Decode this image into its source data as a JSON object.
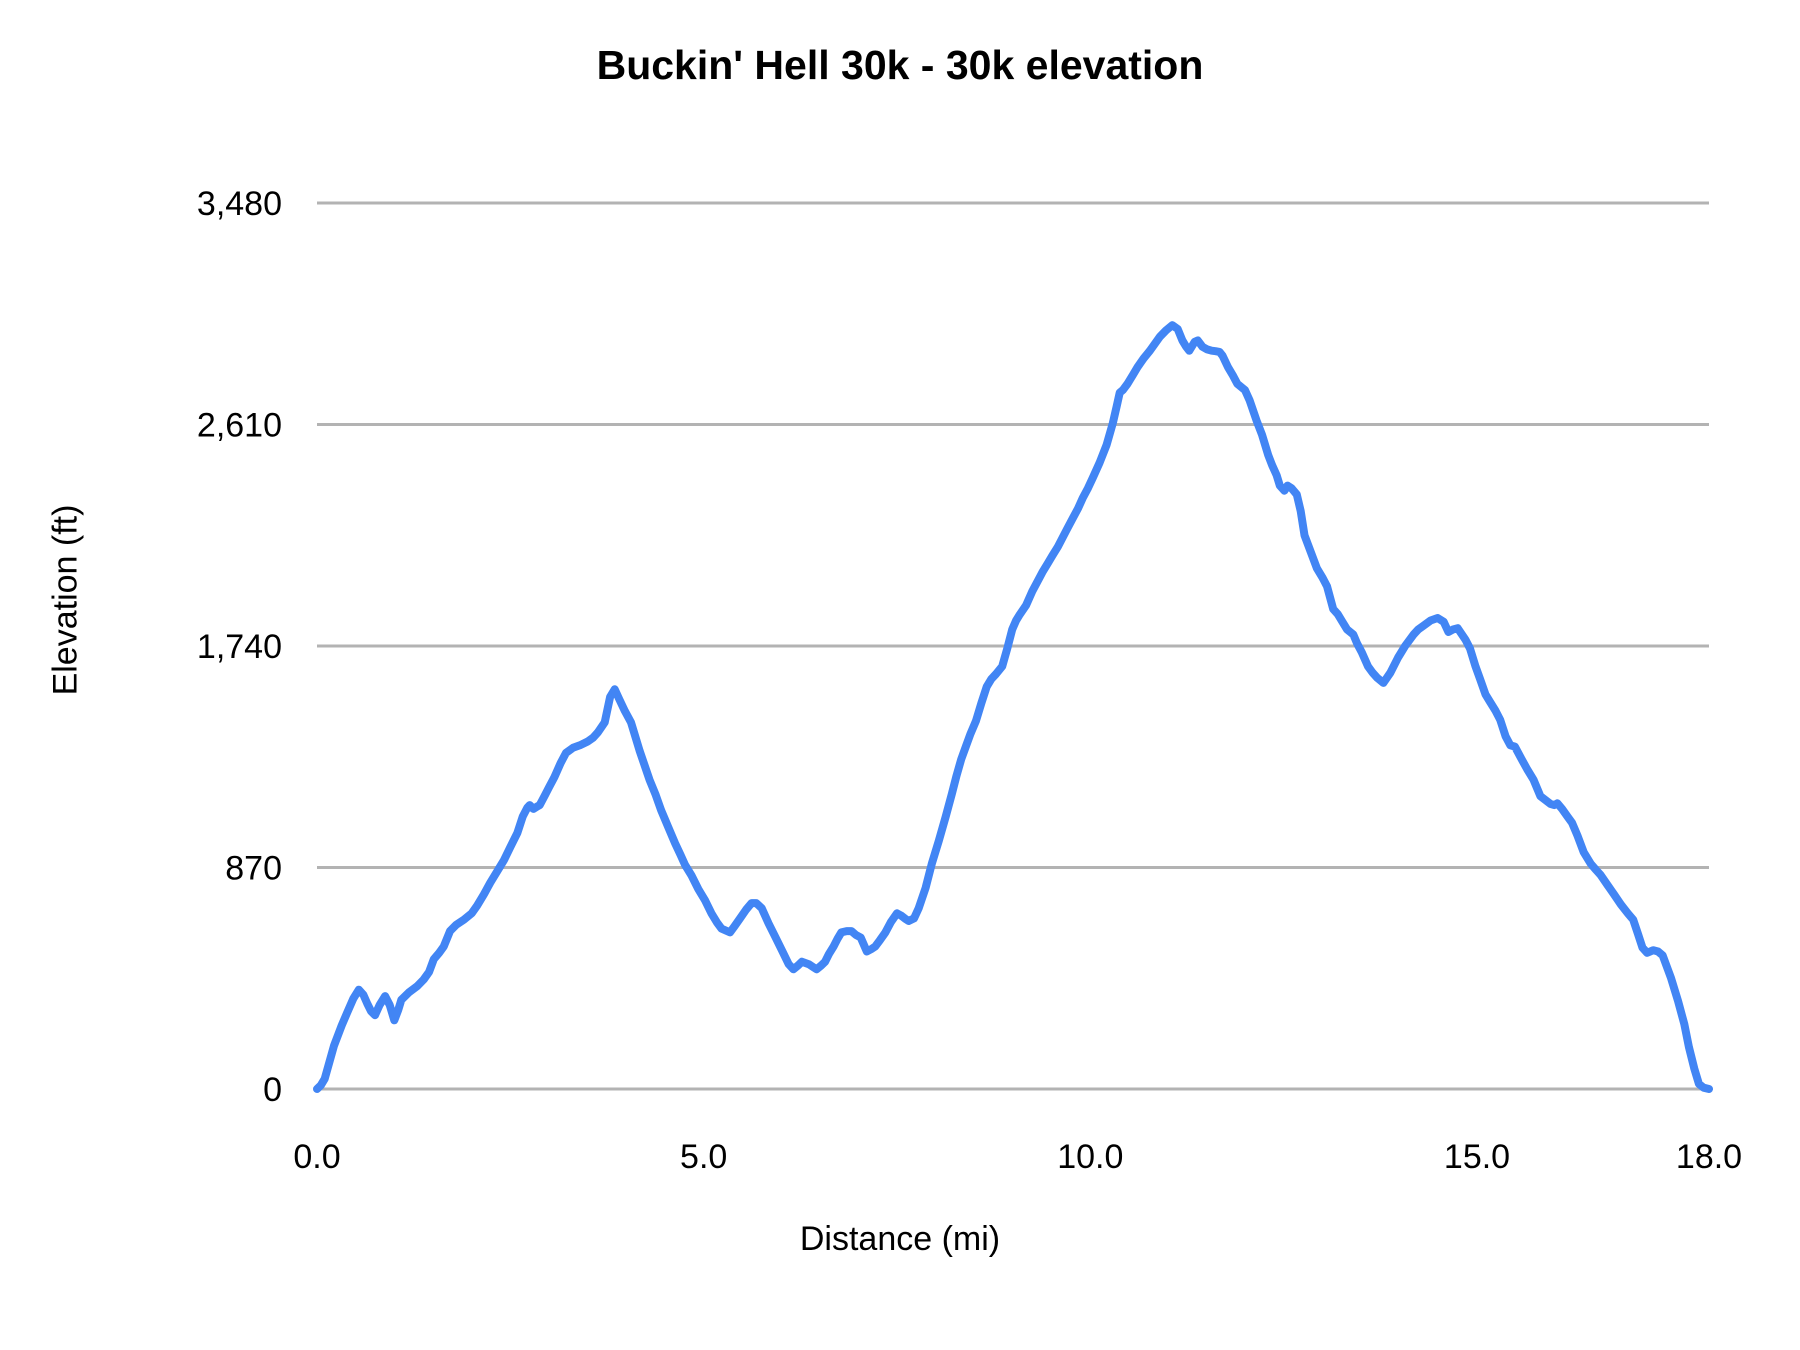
{
  "chart_data": {
    "type": "line",
    "title": "Buckin' Hell 30k - 30k elevation",
    "xlabel": "Distance (mi)",
    "ylabel": "Elevation (ft)",
    "xlim": [
      0,
      18
    ],
    "ylim": [
      0,
      3480
    ],
    "grid": "horizontal-only",
    "legend": "none",
    "line_color": "#4285f4",
    "line_width": 8,
    "grid_color": "#b3b3b3",
    "text_color": "#000000",
    "background_color": "#ffffff",
    "x_ticks": [
      {
        "label": "0.0",
        "value": 0
      },
      {
        "label": "5.0",
        "value": 5
      },
      {
        "label": "10.0",
        "value": 10
      },
      {
        "label": "15.0",
        "value": 15
      },
      {
        "label": "18.0",
        "value": 18
      }
    ],
    "y_ticks": [
      {
        "label": "0",
        "value": 0
      },
      {
        "label": "870",
        "value": 870
      },
      {
        "label": "1,740",
        "value": 1740
      },
      {
        "label": "2,610",
        "value": 2610
      },
      {
        "label": "3,480",
        "value": 3480
      }
    ],
    "series": [
      {
        "name": "30k elevation",
        "points": [
          [
            0,
            0
          ],
          [
            0.05,
            15
          ],
          [
            0.1,
            40
          ],
          [
            0.22,
            170
          ],
          [
            0.32,
            250
          ],
          [
            0.39,
            300
          ],
          [
            0.47,
            355
          ],
          [
            0.54,
            390
          ],
          [
            0.6,
            370
          ],
          [
            0.65,
            335
          ],
          [
            0.7,
            305
          ],
          [
            0.75,
            290
          ],
          [
            0.81,
            330
          ],
          [
            0.88,
            365
          ],
          [
            0.94,
            330
          ],
          [
            1.0,
            270
          ],
          [
            1.05,
            310
          ],
          [
            1.09,
            350
          ],
          [
            1.19,
            380
          ],
          [
            1.3,
            405
          ],
          [
            1.38,
            430
          ],
          [
            1.45,
            460
          ],
          [
            1.51,
            510
          ],
          [
            1.58,
            535
          ],
          [
            1.64,
            560
          ],
          [
            1.72,
            620
          ],
          [
            1.8,
            645
          ],
          [
            1.9,
            665
          ],
          [
            2.0,
            690
          ],
          [
            2.07,
            720
          ],
          [
            2.16,
            765
          ],
          [
            2.24,
            810
          ],
          [
            2.33,
            855
          ],
          [
            2.42,
            900
          ],
          [
            2.5,
            950
          ],
          [
            2.59,
            1005
          ],
          [
            2.66,
            1070
          ],
          [
            2.72,
            1105
          ],
          [
            2.75,
            1115
          ],
          [
            2.8,
            1100
          ],
          [
            2.85,
            1110
          ],
          [
            2.88,
            1115
          ],
          [
            2.94,
            1150
          ],
          [
            3.0,
            1185
          ],
          [
            3.07,
            1225
          ],
          [
            3.15,
            1280
          ],
          [
            3.22,
            1320
          ],
          [
            3.31,
            1340
          ],
          [
            3.4,
            1350
          ],
          [
            3.5,
            1365
          ],
          [
            3.57,
            1380
          ],
          [
            3.63,
            1400
          ],
          [
            3.72,
            1440
          ],
          [
            3.79,
            1540
          ],
          [
            3.85,
            1570
          ],
          [
            3.91,
            1530
          ],
          [
            3.98,
            1485
          ],
          [
            4.06,
            1440
          ],
          [
            4.17,
            1330
          ],
          [
            4.3,
            1215
          ],
          [
            4.38,
            1155
          ],
          [
            4.45,
            1095
          ],
          [
            4.54,
            1030
          ],
          [
            4.63,
            965
          ],
          [
            4.7,
            920
          ],
          [
            4.76,
            880
          ],
          [
            4.84,
            840
          ],
          [
            4.93,
            785
          ],
          [
            5.02,
            740
          ],
          [
            5.1,
            690
          ],
          [
            5.17,
            655
          ],
          [
            5.23,
            630
          ],
          [
            5.34,
            615
          ],
          [
            5.4,
            640
          ],
          [
            5.47,
            670
          ],
          [
            5.55,
            705
          ],
          [
            5.62,
            730
          ],
          [
            5.68,
            730
          ],
          [
            5.75,
            710
          ],
          [
            5.84,
            650
          ],
          [
            5.93,
            595
          ],
          [
            6.02,
            540
          ],
          [
            6.1,
            490
          ],
          [
            6.16,
            470
          ],
          [
            6.22,
            485
          ],
          [
            6.27,
            500
          ],
          [
            6.36,
            490
          ],
          [
            6.42,
            478
          ],
          [
            6.46,
            470
          ],
          [
            6.52,
            485
          ],
          [
            6.57,
            500
          ],
          [
            6.62,
            530
          ],
          [
            6.68,
            560
          ],
          [
            6.73,
            590
          ],
          [
            6.78,
            615
          ],
          [
            6.85,
            620
          ],
          [
            6.91,
            620
          ],
          [
            6.97,
            605
          ],
          [
            7.03,
            595
          ],
          [
            7.11,
            540
          ],
          [
            7.17,
            550
          ],
          [
            7.22,
            560
          ],
          [
            7.28,
            585
          ],
          [
            7.35,
            615
          ],
          [
            7.42,
            655
          ],
          [
            7.5,
            690
          ],
          [
            7.56,
            680
          ],
          [
            7.61,
            668
          ],
          [
            7.65,
            660
          ],
          [
            7.72,
            670
          ],
          [
            7.78,
            710
          ],
          [
            7.87,
            790
          ],
          [
            7.95,
            885
          ],
          [
            8.04,
            975
          ],
          [
            8.13,
            1070
          ],
          [
            8.21,
            1160
          ],
          [
            8.27,
            1230
          ],
          [
            8.33,
            1295
          ],
          [
            8.39,
            1345
          ],
          [
            8.45,
            1395
          ],
          [
            8.52,
            1445
          ],
          [
            8.59,
            1515
          ],
          [
            8.66,
            1580
          ],
          [
            8.72,
            1610
          ],
          [
            8.78,
            1630
          ],
          [
            8.86,
            1660
          ],
          [
            8.93,
            1735
          ],
          [
            8.99,
            1805
          ],
          [
            9.04,
            1840
          ],
          [
            9.08,
            1860
          ],
          [
            9.17,
            1900
          ],
          [
            9.25,
            1955
          ],
          [
            9.32,
            1995
          ],
          [
            9.38,
            2030
          ],
          [
            9.45,
            2065
          ],
          [
            9.51,
            2095
          ],
          [
            9.58,
            2130
          ],
          [
            9.64,
            2165
          ],
          [
            9.7,
            2200
          ],
          [
            9.77,
            2240
          ],
          [
            9.84,
            2280
          ],
          [
            9.9,
            2320
          ],
          [
            9.97,
            2360
          ],
          [
            10.03,
            2400
          ],
          [
            10.12,
            2460
          ],
          [
            10.21,
            2530
          ],
          [
            10.29,
            2615
          ],
          [
            10.34,
            2680
          ],
          [
            10.38,
            2735
          ],
          [
            10.42,
            2745
          ],
          [
            10.48,
            2770
          ],
          [
            10.55,
            2805
          ],
          [
            10.61,
            2835
          ],
          [
            10.69,
            2870
          ],
          [
            10.77,
            2900
          ],
          [
            10.9,
            2955
          ],
          [
            10.98,
            2980
          ],
          [
            11.06,
            3000
          ],
          [
            11.13,
            2985
          ],
          [
            11.19,
            2940
          ],
          [
            11.24,
            2915
          ],
          [
            11.28,
            2900
          ],
          [
            11.35,
            2935
          ],
          [
            11.39,
            2940
          ],
          [
            11.45,
            2915
          ],
          [
            11.51,
            2905
          ],
          [
            11.57,
            2900
          ],
          [
            11.62,
            2898
          ],
          [
            11.67,
            2895
          ],
          [
            11.71,
            2880
          ],
          [
            11.78,
            2835
          ],
          [
            11.84,
            2805
          ],
          [
            11.9,
            2770
          ],
          [
            11.96,
            2755
          ],
          [
            12.0,
            2745
          ],
          [
            12.06,
            2705
          ],
          [
            12.15,
            2625
          ],
          [
            12.22,
            2570
          ],
          [
            12.3,
            2490
          ],
          [
            12.35,
            2450
          ],
          [
            12.41,
            2410
          ],
          [
            12.45,
            2370
          ],
          [
            12.51,
            2350
          ],
          [
            12.55,
            2370
          ],
          [
            12.6,
            2360
          ],
          [
            12.67,
            2335
          ],
          [
            12.72,
            2270
          ],
          [
            12.77,
            2175
          ],
          [
            12.85,
            2110
          ],
          [
            12.93,
            2045
          ],
          [
            13.0,
            2010
          ],
          [
            13.06,
            1975
          ],
          [
            13.14,
            1885
          ],
          [
            13.2,
            1865
          ],
          [
            13.26,
            1835
          ],
          [
            13.32,
            1805
          ],
          [
            13.4,
            1785
          ],
          [
            13.45,
            1750
          ],
          [
            13.51,
            1715
          ],
          [
            13.59,
            1660
          ],
          [
            13.65,
            1635
          ],
          [
            13.71,
            1615
          ],
          [
            13.79,
            1595
          ],
          [
            13.88,
            1635
          ],
          [
            13.98,
            1695
          ],
          [
            14.07,
            1740
          ],
          [
            14.18,
            1785
          ],
          [
            14.24,
            1805
          ],
          [
            14.31,
            1820
          ],
          [
            14.4,
            1840
          ],
          [
            14.49,
            1850
          ],
          [
            14.57,
            1835
          ],
          [
            14.63,
            1795
          ],
          [
            14.69,
            1805
          ],
          [
            14.75,
            1810
          ],
          [
            14.85,
            1765
          ],
          [
            14.91,
            1730
          ],
          [
            14.98,
            1660
          ],
          [
            15.04,
            1610
          ],
          [
            15.11,
            1550
          ],
          [
            15.17,
            1520
          ],
          [
            15.24,
            1485
          ],
          [
            15.3,
            1450
          ],
          [
            15.37,
            1385
          ],
          [
            15.43,
            1350
          ],
          [
            15.49,
            1345
          ],
          [
            15.56,
            1305
          ],
          [
            15.65,
            1255
          ],
          [
            15.73,
            1215
          ],
          [
            15.82,
            1150
          ],
          [
            15.95,
            1120
          ],
          [
            16.0,
            1115
          ],
          [
            16.04,
            1122
          ],
          [
            16.1,
            1100
          ],
          [
            16.17,
            1070
          ],
          [
            16.23,
            1045
          ],
          [
            16.3,
            995
          ],
          [
            16.38,
            930
          ],
          [
            16.47,
            885
          ],
          [
            16.54,
            860
          ],
          [
            16.6,
            840
          ],
          [
            16.69,
            800
          ],
          [
            16.77,
            765
          ],
          [
            16.86,
            725
          ],
          [
            16.95,
            690
          ],
          [
            17.02,
            665
          ],
          [
            17.08,
            610
          ],
          [
            17.14,
            555
          ],
          [
            17.2,
            535
          ],
          [
            17.28,
            545
          ],
          [
            17.34,
            540
          ],
          [
            17.4,
            525
          ],
          [
            17.51,
            435
          ],
          [
            17.6,
            345
          ],
          [
            17.68,
            255
          ],
          [
            17.74,
            165
          ],
          [
            17.81,
            80
          ],
          [
            17.87,
            20
          ],
          [
            17.93,
            5
          ],
          [
            18.0,
            0
          ]
        ]
      }
    ]
  }
}
